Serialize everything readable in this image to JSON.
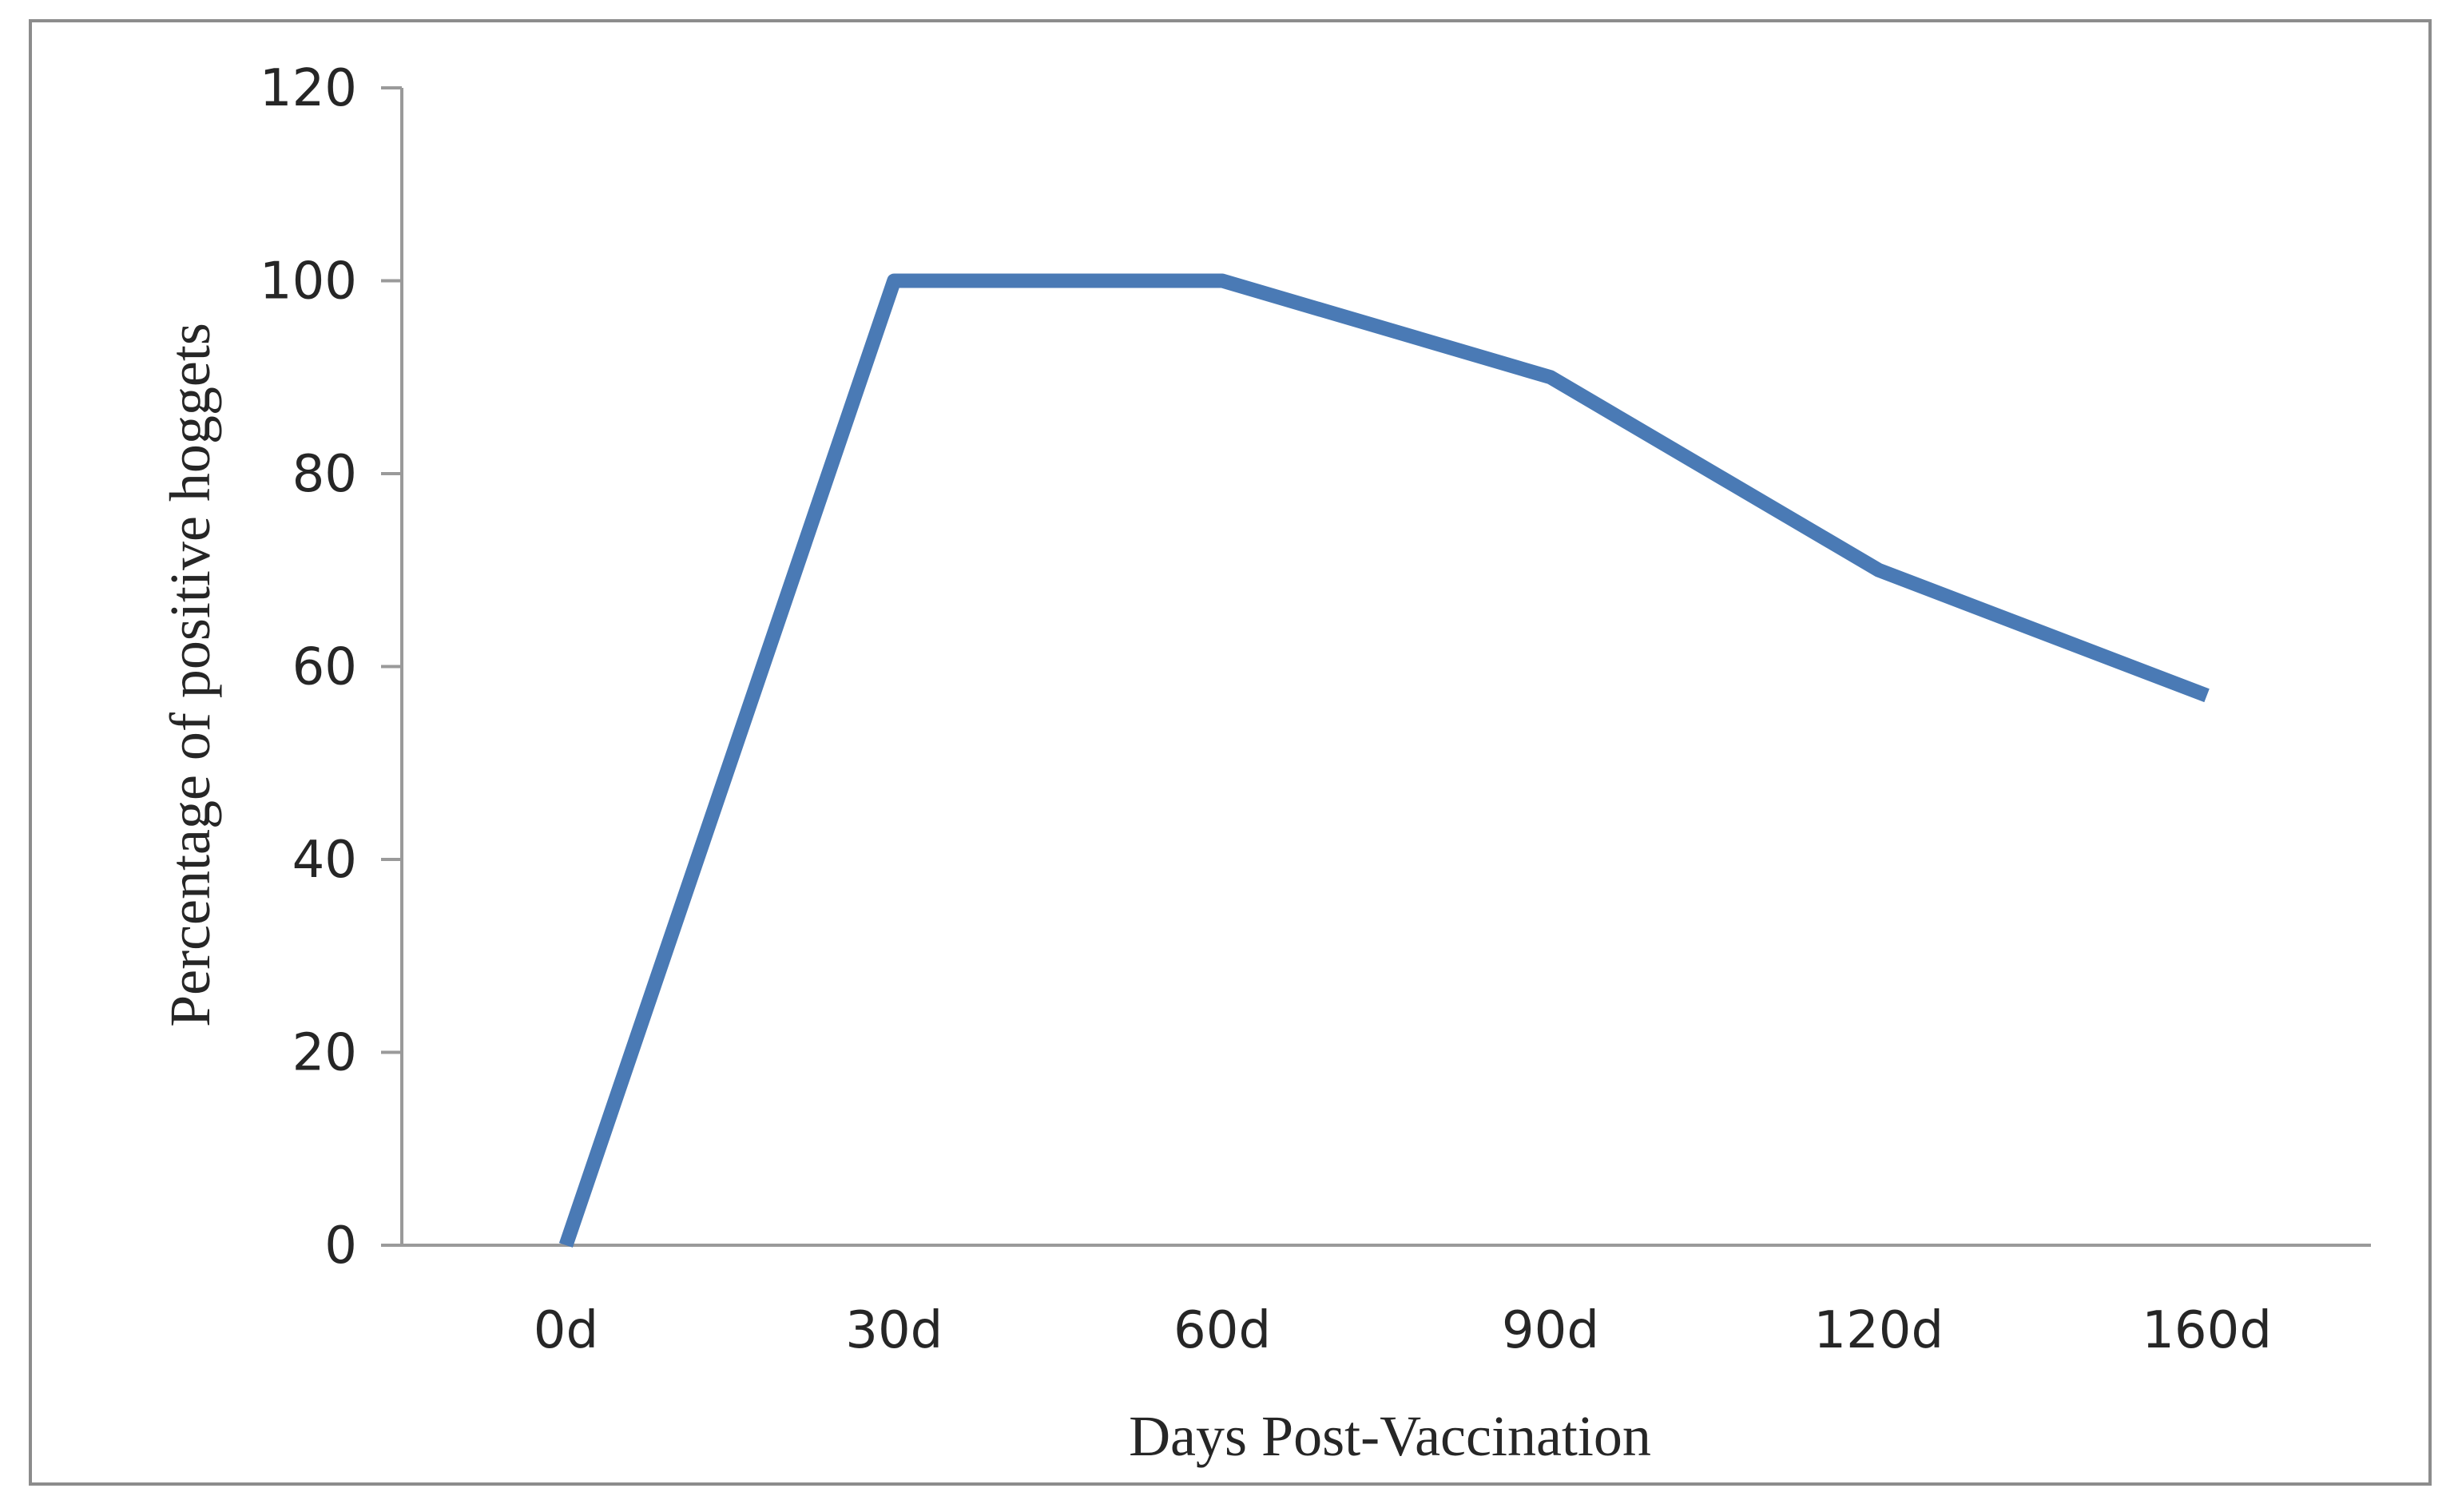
{
  "chart_data": {
    "type": "line",
    "title": "",
    "xlabel": "Days Post-Vaccination",
    "ylabel": "Percentage of positive hoggets",
    "categories": [
      "0d",
      "30d",
      "60d",
      "90d",
      "120d",
      "160d"
    ],
    "series": [
      {
        "values": [
          0,
          100,
          100,
          90,
          70,
          57
        ],
        "color": "#4a7ab5"
      }
    ],
    "ylim": [
      0,
      120
    ],
    "yticks": [
      0,
      20,
      40,
      60,
      80,
      100,
      120
    ],
    "grid": false,
    "legend": "none",
    "colors": {
      "line": "#4a7ab5",
      "axis": "#9a9a9a",
      "text": "#262626",
      "frame": "#8c8c8c"
    }
  }
}
